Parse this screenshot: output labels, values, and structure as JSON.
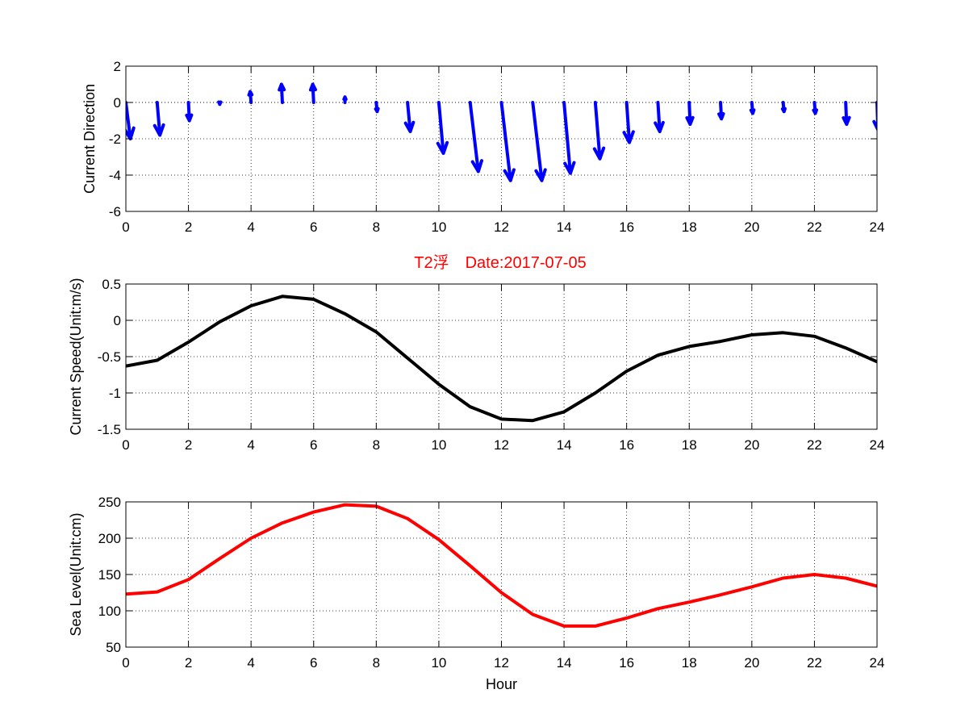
{
  "colors": {
    "direction": "#0000ff",
    "speed": "#000000",
    "sea_level": "#ff0000",
    "title": "#ff0000"
  },
  "figure": {
    "title": "T2浮　Date:2017-07-05"
  },
  "chart_data": [
    {
      "type": "quiver",
      "ylabel": "Current Direction",
      "xlabel": "",
      "xlim": [
        0,
        24
      ],
      "ylim": [
        -6,
        2
      ],
      "xticks": [
        "0",
        "2",
        "4",
        "6",
        "8",
        "10",
        "12",
        "14",
        "16",
        "18",
        "20",
        "22",
        "24"
      ],
      "yticks": [
        "-6",
        "-4",
        "-2",
        "0",
        "2"
      ],
      "grid": true,
      "arrows": [
        {
          "x": 0,
          "u": 0.25,
          "v": -2.0
        },
        {
          "x": 1,
          "u": 0.15,
          "v": -1.8
        },
        {
          "x": 2,
          "u": 0.05,
          "v": -1.0
        },
        {
          "x": 3,
          "u": 0.0,
          "v": -0.1
        },
        {
          "x": 4,
          "u": -0.05,
          "v": 0.6
        },
        {
          "x": 5,
          "u": -0.05,
          "v": 1.0
        },
        {
          "x": 6,
          "u": -0.05,
          "v": 1.0
        },
        {
          "x": 7,
          "u": 0.0,
          "v": 0.3
        },
        {
          "x": 8,
          "u": 0.05,
          "v": -0.5
        },
        {
          "x": 9,
          "u": 0.15,
          "v": -1.6
        },
        {
          "x": 10,
          "u": 0.25,
          "v": -2.8
        },
        {
          "x": 11,
          "u": 0.45,
          "v": -3.8
        },
        {
          "x": 12,
          "u": 0.5,
          "v": -4.3
        },
        {
          "x": 13,
          "u": 0.5,
          "v": -4.3
        },
        {
          "x": 14,
          "u": 0.35,
          "v": -3.9
        },
        {
          "x": 15,
          "u": 0.25,
          "v": -3.1
        },
        {
          "x": 16,
          "u": 0.15,
          "v": -2.2
        },
        {
          "x": 17,
          "u": 0.1,
          "v": -1.6
        },
        {
          "x": 18,
          "u": 0.05,
          "v": -1.2
        },
        {
          "x": 19,
          "u": 0.05,
          "v": -0.9
        },
        {
          "x": 20,
          "u": 0.05,
          "v": -0.6
        },
        {
          "x": 21,
          "u": 0.05,
          "v": -0.5
        },
        {
          "x": 22,
          "u": 0.05,
          "v": -0.6
        },
        {
          "x": 23,
          "u": 0.05,
          "v": -1.2
        },
        {
          "x": 24,
          "u": 0.05,
          "v": -1.5
        }
      ]
    },
    {
      "type": "line",
      "ylabel": "Current Speed(Unit:m/s)",
      "xlabel": "",
      "xlim": [
        0,
        24
      ],
      "ylim": [
        -1.5,
        0.5
      ],
      "xticks": [
        "0",
        "2",
        "4",
        "6",
        "8",
        "10",
        "12",
        "14",
        "16",
        "18",
        "20",
        "22",
        "24"
      ],
      "yticks": [
        "-1.5",
        "-1",
        "-0.5",
        "0",
        "0.5"
      ],
      "grid": true,
      "x": [
        0,
        1,
        2,
        3,
        4,
        5,
        6,
        7,
        8,
        9,
        10,
        11,
        12,
        13,
        14,
        15,
        16,
        17,
        18,
        19,
        20,
        21,
        22,
        23,
        24
      ],
      "values": [
        -0.63,
        -0.55,
        -0.3,
        -0.02,
        0.2,
        0.33,
        0.29,
        0.09,
        -0.16,
        -0.52,
        -0.88,
        -1.19,
        -1.36,
        -1.38,
        -1.26,
        -1.0,
        -0.7,
        -0.48,
        -0.36,
        -0.29,
        -0.2,
        -0.17,
        -0.22,
        -0.38,
        -0.57
      ]
    },
    {
      "type": "line",
      "ylabel": "Sea Level(Unit:cm)",
      "xlabel": "Hour",
      "xlim": [
        0,
        24
      ],
      "ylim": [
        50,
        250
      ],
      "xticks": [
        "0",
        "2",
        "4",
        "6",
        "8",
        "10",
        "12",
        "14",
        "16",
        "18",
        "20",
        "22",
        "24"
      ],
      "yticks": [
        "50",
        "100",
        "150",
        "200",
        "250"
      ],
      "grid": true,
      "x": [
        0,
        1,
        2,
        3,
        4,
        5,
        6,
        7,
        8,
        9,
        10,
        11,
        12,
        13,
        14,
        15,
        16,
        17,
        18,
        19,
        20,
        21,
        22,
        23,
        24
      ],
      "values": [
        123,
        126,
        143,
        172,
        200,
        221,
        236,
        246,
        244,
        227,
        198,
        162,
        125,
        95,
        79,
        79,
        90,
        103,
        112,
        122,
        133,
        145,
        150,
        145,
        134
      ]
    }
  ]
}
